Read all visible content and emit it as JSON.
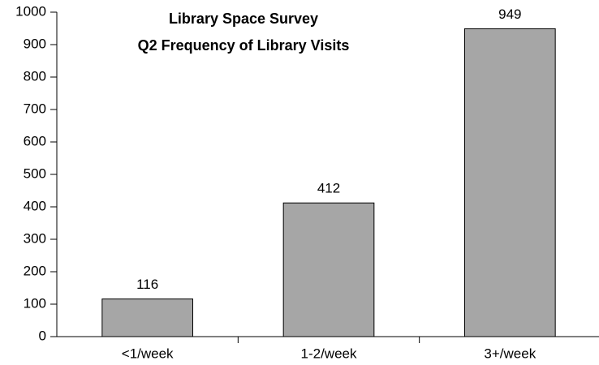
{
  "chart_data": {
    "type": "bar",
    "title": "Library Space Survey",
    "subtitle": "Q2 Frequency of Library Visits",
    "categories": [
      "<1/week",
      "1-2/week",
      "3+/week"
    ],
    "values": [
      116,
      412,
      949
    ],
    "color": "#a6a6a6",
    "ylim": [
      0,
      1000
    ],
    "yticks": [
      0,
      100,
      200,
      300,
      400,
      500,
      600,
      700,
      800,
      900,
      1000
    ],
    "grid": false
  }
}
